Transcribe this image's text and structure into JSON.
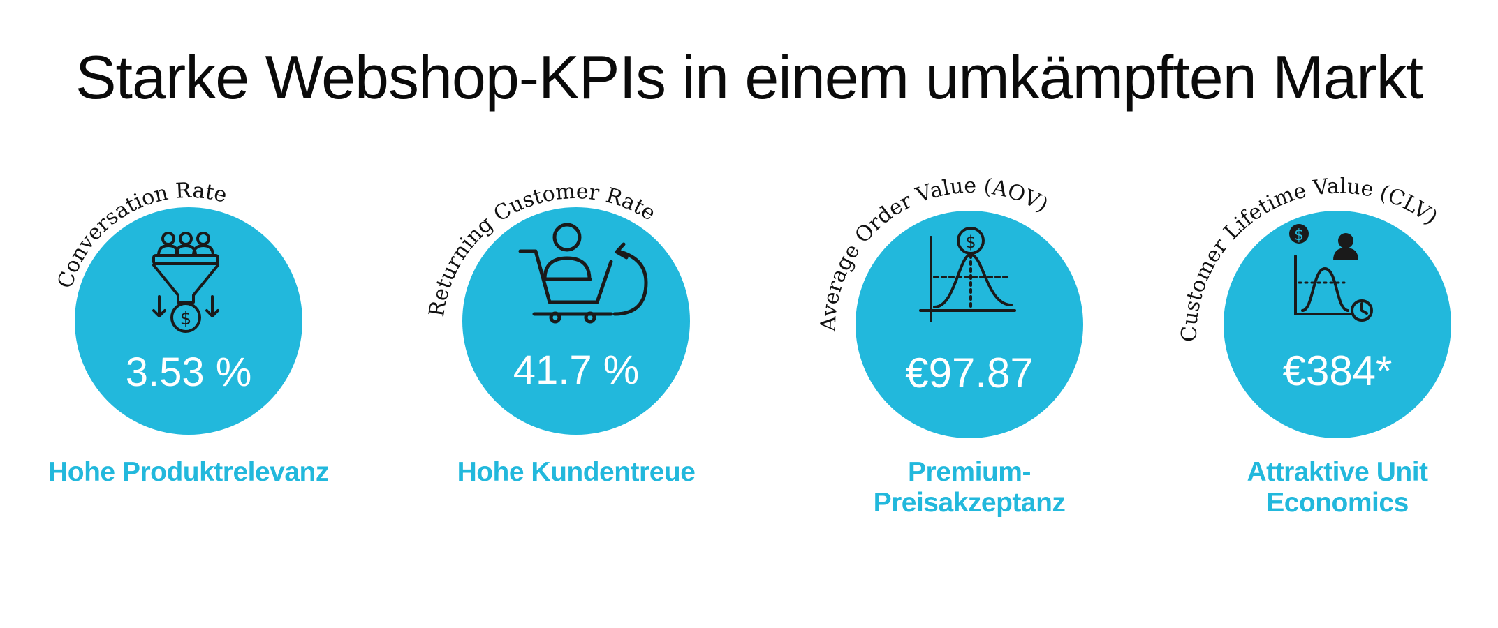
{
  "title": "Starke Webshop-KPIs in einem umkämpften Markt",
  "colors": {
    "circle": "#22b8dc",
    "accent_text": "#22b8dc",
    "icon": "#1a1a1a",
    "value_text": "#ffffff"
  },
  "kpis": [
    {
      "arc_label": "Conversation Rate",
      "icon": "funnel-dollar-icon",
      "value": "3.53 %",
      "caption": [
        "Hohe Produktrelevanz"
      ]
    },
    {
      "arc_label": "Returning Customer Rate",
      "icon": "cart-return-icon",
      "value": "41.7 %",
      "caption": [
        "Hohe Kundentreue"
      ]
    },
    {
      "arc_label": "Average Order Value (AOV)",
      "icon": "price-curve-icon",
      "value": "€97.87",
      "caption": [
        "Premium-",
        "Preisakzeptanz"
      ]
    },
    {
      "arc_label": "Customer Lifetime Value (CLV)",
      "icon": "lifetime-curve-icon",
      "value": "€384*",
      "caption": [
        "Attraktive Unit",
        "Economics"
      ]
    }
  ]
}
